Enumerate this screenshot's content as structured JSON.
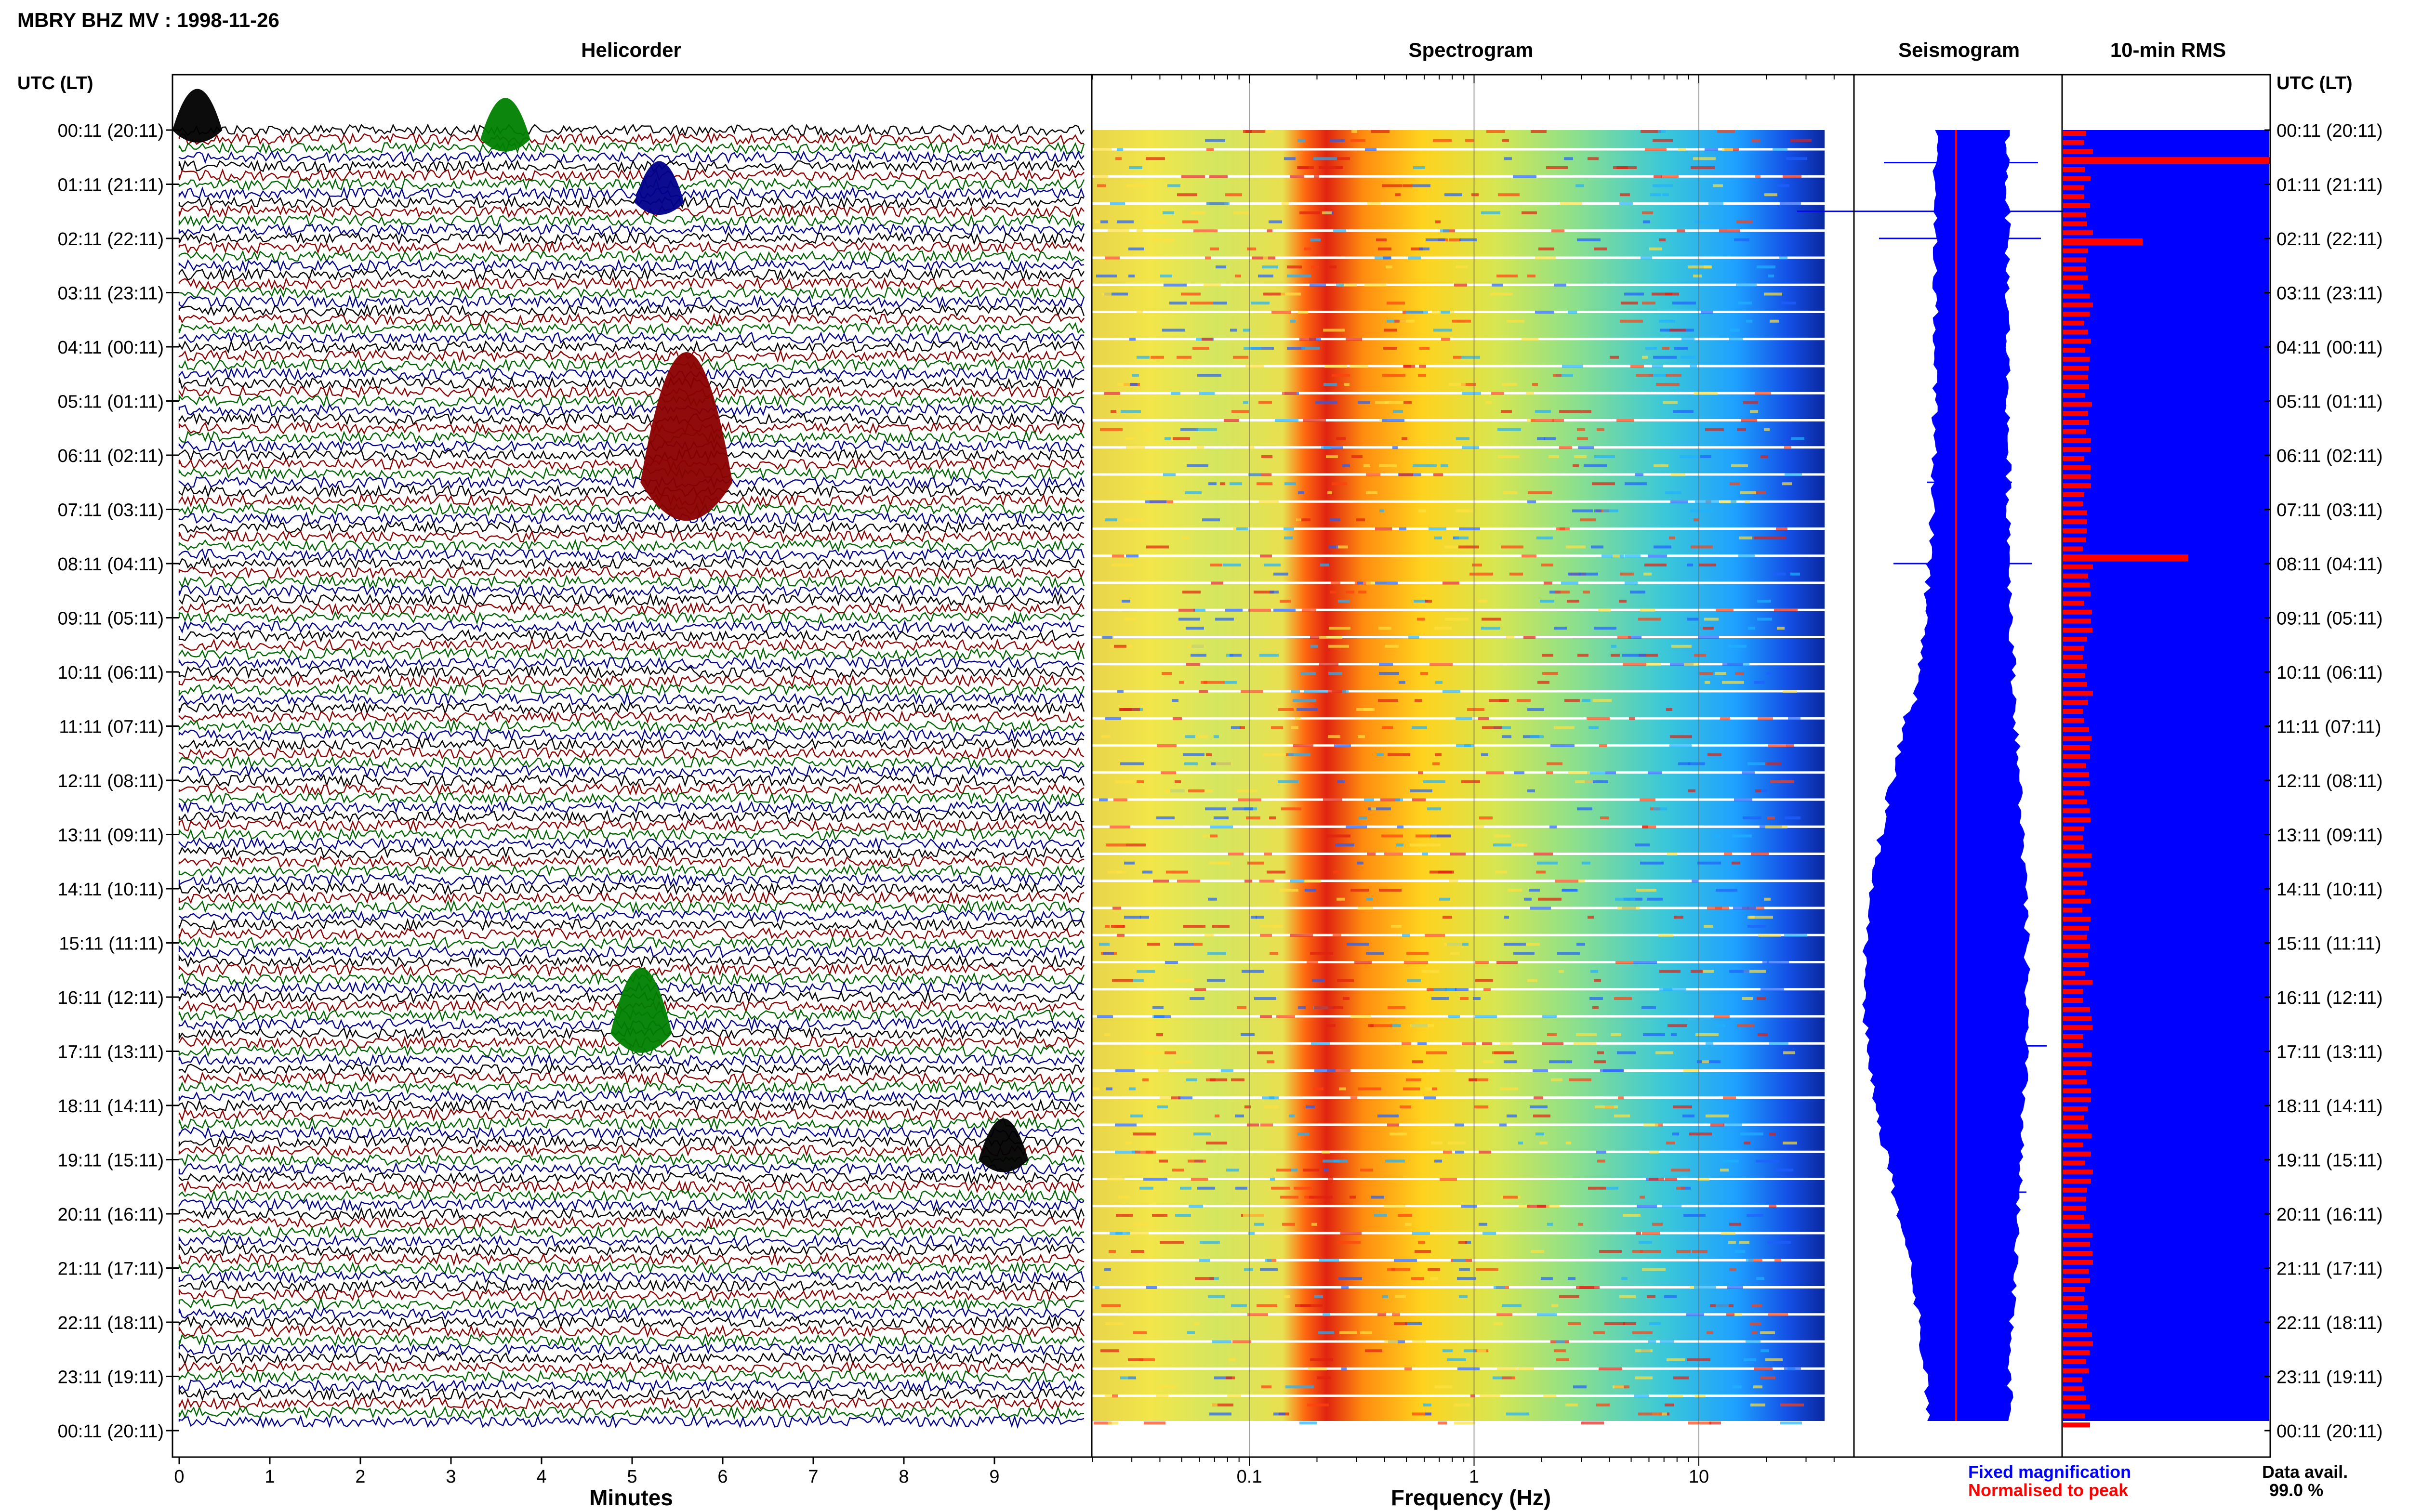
{
  "header": {
    "title": "MBRY BHZ MV : 1998-11-26"
  },
  "panels": {
    "helicorder": "Helicorder",
    "spectrogram": "Spectrogram",
    "seismogram": "Seismogram",
    "rms": "10-min RMS"
  },
  "axes": {
    "left_header": "UTC (LT)",
    "right_header": "UTC (LT)",
    "minutes_label": "Minutes",
    "frequency_label": "Frequency (Hz)"
  },
  "time_labels": [
    "00:11 (20:11)",
    "01:11 (21:11)",
    "02:11 (22:11)",
    "03:11 (23:11)",
    "04:11 (00:11)",
    "05:11 (01:11)",
    "06:11 (02:11)",
    "07:11 (03:11)",
    "08:11 (04:11)",
    "09:11 (05:11)",
    "10:11 (06:11)",
    "11:11 (07:11)",
    "12:11 (08:11)",
    "13:11 (09:11)",
    "14:11 (10:11)",
    "15:11 (11:11)",
    "16:11 (12:11)",
    "17:11 (13:11)",
    "18:11 (14:11)",
    "19:11 (15:11)",
    "20:11 (16:11)",
    "21:11 (17:11)",
    "22:11 (18:11)",
    "23:11 (19:11)",
    "00:11 (20:11)"
  ],
  "minute_ticks": [
    "0",
    "1",
    "2",
    "3",
    "4",
    "5",
    "6",
    "7",
    "8",
    "9"
  ],
  "frequency_ticks": [
    "0.1",
    "1",
    "10"
  ],
  "legend": {
    "fixed": "Fixed magnification",
    "normalised": "Normalised to peak",
    "fixed_color": "#0000ff",
    "normalised_color": "#ff0000"
  },
  "data_availability": {
    "label": "Data avail.",
    "value": "99.0 %"
  },
  "colors": {
    "trace_cycle": [
      "#000000",
      "#8b0000",
      "#006400",
      "#00008b"
    ],
    "rms_fill": "#0000ff",
    "rms_bar": "#ff0000",
    "seismogram_fill": "#0000ff",
    "peak_line": "#ff0000"
  },
  "chart_data": [
    {
      "type": "line",
      "title": "Helicorder",
      "xlabel": "Minutes",
      "ylabel": "UTC (LT)",
      "xlim": [
        0,
        10
      ],
      "rows_per_hour": 6,
      "events": [
        {
          "time": "00:11",
          "minute": 0.2,
          "color": "black"
        },
        {
          "time": "00:21",
          "minute": 3.6,
          "color": "green"
        },
        {
          "time": "01:31",
          "minute": 5.3,
          "color": "navy"
        },
        {
          "time": "06:41",
          "minute": 5.6,
          "color": "darkred"
        },
        {
          "time": "16:51",
          "minute": 5.1,
          "color": "green"
        },
        {
          "time": "19:11",
          "minute": 9.1,
          "color": "black"
        }
      ]
    },
    {
      "type": "heatmap",
      "title": "Spectrogram",
      "xlabel": "Frequency (Hz)",
      "x_scale": "log",
      "xlim": [
        0.02,
        50
      ],
      "peak_band_hz": [
        0.2,
        0.5
      ]
    },
    {
      "type": "line",
      "title": "Seismogram",
      "series": [
        {
          "name": "Fixed magnification",
          "color": "#0000ff"
        },
        {
          "name": "Normalised to peak",
          "color": "#ff0000"
        }
      ]
    },
    {
      "type": "bar",
      "title": "10-min RMS",
      "highlight_times": [
        "00:41",
        "02:11",
        "08:01"
      ]
    }
  ]
}
